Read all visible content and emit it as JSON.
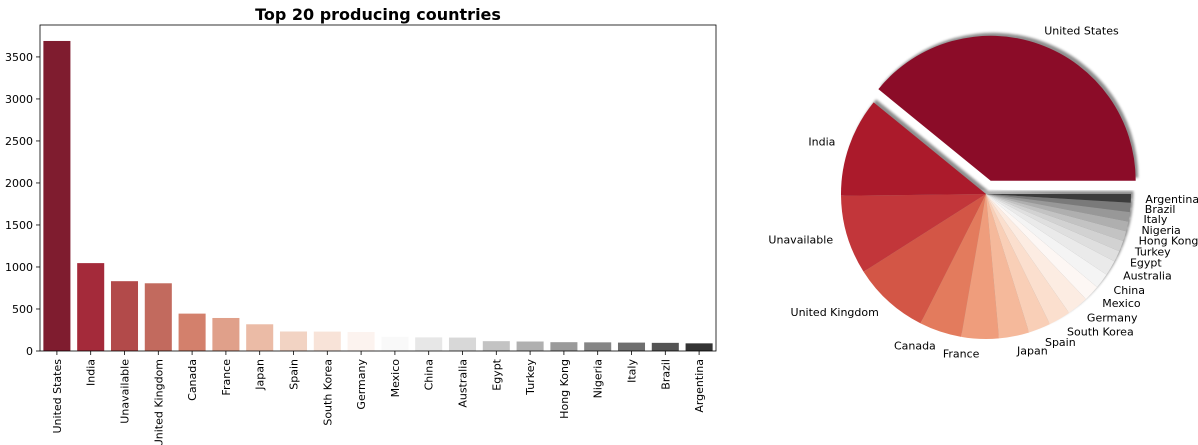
{
  "chart_data": [
    {
      "type": "bar",
      "title": "Top 20 producing countries",
      "xlabel": "",
      "ylabel": "",
      "ylim": [
        0,
        3880
      ],
      "yticks": [
        0,
        500,
        1000,
        1500,
        2000,
        2500,
        3000,
        3500
      ],
      "grid": false,
      "categories": [
        "United States",
        "India",
        "Unavailable",
        "United Kingdom",
        "Canada",
        "France",
        "Japan",
        "Spain",
        "South Korea",
        "Germany",
        "Mexico",
        "China",
        "Australia",
        "Egypt",
        "Turkey",
        "Hong Kong",
        "Nigeria",
        "Italy",
        "Brazil",
        "Argentina"
      ],
      "values": [
        3690,
        1046,
        831,
        806,
        445,
        393,
        318,
        232,
        231,
        226,
        169,
        162,
        160,
        117,
        113,
        105,
        103,
        100,
        97,
        91
      ],
      "colors": [
        "#7f1c2f",
        "#a42a3a",
        "#b24a4a",
        "#c26a5e",
        "#d3806c",
        "#e0a08a",
        "#ebbba6",
        "#f2d3c3",
        "#f8e3d8",
        "#fcf3ef",
        "#f9f9f9",
        "#e7e7e7",
        "#d8d8d8",
        "#c3c3c3",
        "#b0b0b0",
        "#9a9a9a",
        "#858585",
        "#6e6e6e",
        "#545454",
        "#333333"
      ]
    },
    {
      "type": "pie",
      "title": "",
      "legend": "none",
      "labels": [
        "United States",
        "India",
        "Unavailable",
        "United Kingdom",
        "Canada",
        "France",
        "Japan",
        "Spain",
        "South Korea",
        "Germany",
        "Mexico",
        "China",
        "Australia",
        "Egypt",
        "Turkey",
        "Hong Kong",
        "Nigeria",
        "Italy",
        "Brazil",
        "Argentina"
      ],
      "values": [
        3690,
        1046,
        831,
        806,
        445,
        393,
        318,
        232,
        231,
        226,
        169,
        162,
        160,
        117,
        113,
        105,
        103,
        100,
        97,
        91
      ],
      "exploded": [
        "United States"
      ],
      "shadow": true,
      "colors": [
        "#8b0c28",
        "#ab1a2b",
        "#c2363a",
        "#d35646",
        "#e37b5d",
        "#ef9d7c",
        "#f5b99b",
        "#f9cfb7",
        "#fbdfce",
        "#fcece2",
        "#fdf7f4",
        "#f4f4f4",
        "#eaeaea",
        "#dfdfdf",
        "#d2d2d2",
        "#c3c3c3",
        "#afafaf",
        "#989898",
        "#7a7a7a",
        "#3c3c3c"
      ]
    }
  ]
}
